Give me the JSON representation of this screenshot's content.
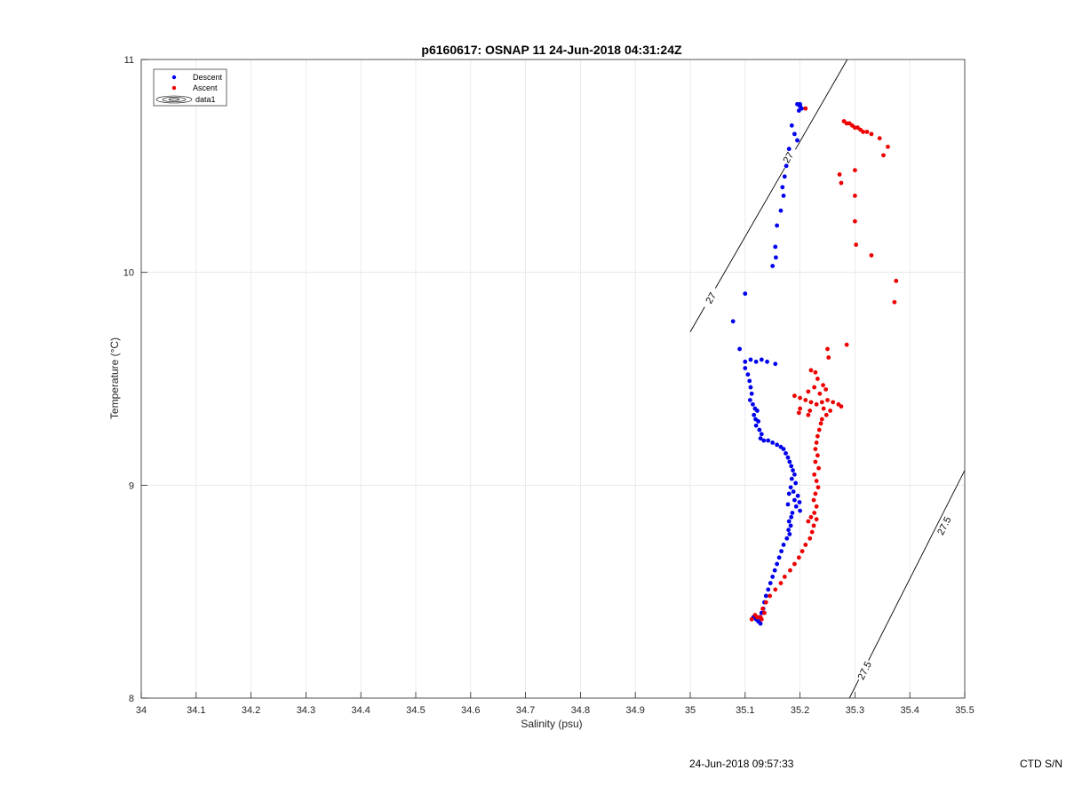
{
  "footer": {
    "date": "24-Jun-2018 09:57:33",
    "ctd": "CTD S/N"
  },
  "chart_data": {
    "type": "scatter",
    "title": "p6160617: OSNAP 11 24-Jun-2018 04:31:24Z",
    "xlabel": "Salinity (psu)",
    "ylabel": "Temperature (°C)",
    "xlim": [
      34,
      35.5
    ],
    "ylim": [
      8,
      11
    ],
    "xticks": [
      "34",
      "34.1",
      "34.2",
      "34.3",
      "34.4",
      "34.5",
      "34.6",
      "34.7",
      "34.8",
      "34.9",
      "35",
      "35.1",
      "35.2",
      "35.3",
      "35.4",
      "35.5"
    ],
    "yticks": [
      "8",
      "9",
      "10",
      "11"
    ],
    "grid": true,
    "legend_position": "top-left",
    "legend": [
      {
        "label": "Descent",
        "marker": "dot",
        "color": "#0000ee"
      },
      {
        "label": "Ascent",
        "marker": "dot",
        "color": "#ee0000"
      },
      {
        "label": "data1",
        "marker": "contour",
        "color": "#000000"
      }
    ],
    "isopycnals": [
      {
        "label": "27",
        "points": [
          [
            35.0,
            9.72
          ],
          [
            35.286,
            11.0
          ]
        ],
        "labels_at": [
          [
            35.037,
            9.88
          ],
          [
            35.178,
            10.54
          ]
        ]
      },
      {
        "label": "27.5",
        "points": [
          [
            35.29,
            8.0
          ],
          [
            35.5,
            9.07
          ]
        ],
        "labels_at": [
          [
            35.317,
            8.13
          ],
          [
            35.462,
            8.81
          ]
        ]
      }
    ],
    "series": [
      {
        "name": "Descent",
        "color": "#0000ee",
        "points": [
          [
            35.195,
            10.79
          ],
          [
            35.2,
            10.79
          ],
          [
            35.203,
            10.77
          ],
          [
            35.198,
            10.76
          ],
          [
            35.2,
            10.78
          ],
          [
            35.185,
            10.69
          ],
          [
            35.19,
            10.65
          ],
          [
            35.195,
            10.62
          ],
          [
            35.18,
            10.58
          ],
          [
            35.175,
            10.5
          ],
          [
            35.172,
            10.45
          ],
          [
            35.168,
            10.4
          ],
          [
            35.17,
            10.36
          ],
          [
            35.165,
            10.29
          ],
          [
            35.158,
            10.22
          ],
          [
            35.155,
            10.12
          ],
          [
            35.156,
            10.07
          ],
          [
            35.15,
            10.03
          ],
          [
            35.1,
            9.9
          ],
          [
            35.078,
            9.77
          ],
          [
            35.09,
            9.64
          ],
          [
            35.1,
            9.58
          ],
          [
            35.11,
            9.59
          ],
          [
            35.12,
            9.58
          ],
          [
            35.13,
            9.59
          ],
          [
            35.14,
            9.58
          ],
          [
            35.155,
            9.57
          ],
          [
            35.1,
            9.55
          ],
          [
            35.105,
            9.52
          ],
          [
            35.108,
            9.49
          ],
          [
            35.11,
            9.46
          ],
          [
            35.112,
            9.43
          ],
          [
            35.109,
            9.4
          ],
          [
            35.114,
            9.38
          ],
          [
            35.118,
            9.36
          ],
          [
            35.122,
            9.35
          ],
          [
            35.116,
            9.33
          ],
          [
            35.119,
            9.31
          ],
          [
            35.124,
            9.3
          ],
          [
            35.12,
            9.28
          ],
          [
            35.126,
            9.26
          ],
          [
            35.13,
            9.24
          ],
          [
            35.128,
            9.22
          ],
          [
            35.134,
            9.21
          ],
          [
            35.142,
            9.21
          ],
          [
            35.15,
            9.2
          ],
          [
            35.158,
            9.19
          ],
          [
            35.165,
            9.18
          ],
          [
            35.17,
            9.17
          ],
          [
            35.174,
            9.15
          ],
          [
            35.178,
            9.13
          ],
          [
            35.181,
            9.11
          ],
          [
            35.184,
            9.09
          ],
          [
            35.187,
            9.07
          ],
          [
            35.19,
            9.05
          ],
          [
            35.185,
            9.03
          ],
          [
            35.192,
            9.01
          ],
          [
            35.183,
            8.99
          ],
          [
            35.188,
            8.97
          ],
          [
            35.18,
            8.96
          ],
          [
            35.196,
            8.95
          ],
          [
            35.19,
            8.93
          ],
          [
            35.199,
            8.92
          ],
          [
            35.178,
            8.91
          ],
          [
            35.193,
            8.9
          ],
          [
            35.2,
            8.88
          ],
          [
            35.186,
            8.87
          ],
          [
            35.184,
            8.85
          ],
          [
            35.18,
            8.83
          ],
          [
            35.183,
            8.81
          ],
          [
            35.179,
            8.79
          ],
          [
            35.181,
            8.77
          ],
          [
            35.176,
            8.75
          ],
          [
            35.17,
            8.72
          ],
          [
            35.166,
            8.69
          ],
          [
            35.162,
            8.66
          ],
          [
            35.158,
            8.63
          ],
          [
            35.154,
            8.6
          ],
          [
            35.15,
            8.57
          ],
          [
            35.146,
            8.54
          ],
          [
            35.142,
            8.51
          ],
          [
            35.138,
            8.48
          ],
          [
            35.135,
            8.45
          ],
          [
            35.133,
            8.42
          ],
          [
            35.13,
            8.4
          ],
          [
            35.126,
            8.38
          ],
          [
            35.124,
            8.36
          ],
          [
            35.12,
            8.37
          ],
          [
            35.128,
            8.35
          ],
          [
            35.115,
            8.38
          ]
        ]
      },
      {
        "name": "Ascent",
        "color": "#ee0000",
        "points": [
          [
            35.21,
            10.77
          ],
          [
            35.28,
            10.71
          ],
          [
            35.285,
            10.7
          ],
          [
            35.29,
            10.7
          ],
          [
            35.295,
            10.69
          ],
          [
            35.3,
            10.68
          ],
          [
            35.305,
            10.68
          ],
          [
            35.31,
            10.67
          ],
          [
            35.315,
            10.66
          ],
          [
            35.322,
            10.66
          ],
          [
            35.33,
            10.65
          ],
          [
            35.345,
            10.63
          ],
          [
            35.36,
            10.59
          ],
          [
            35.352,
            10.55
          ],
          [
            35.3,
            10.48
          ],
          [
            35.272,
            10.46
          ],
          [
            35.275,
            10.42
          ],
          [
            35.3,
            10.36
          ],
          [
            35.3,
            10.24
          ],
          [
            35.302,
            10.13
          ],
          [
            35.33,
            10.08
          ],
          [
            35.375,
            9.96
          ],
          [
            35.372,
            9.86
          ],
          [
            35.285,
            9.66
          ],
          [
            35.25,
            9.64
          ],
          [
            35.252,
            9.6
          ],
          [
            35.22,
            9.54
          ],
          [
            35.228,
            9.53
          ],
          [
            35.232,
            9.5
          ],
          [
            35.242,
            9.47
          ],
          [
            35.226,
            9.46
          ],
          [
            35.247,
            9.45
          ],
          [
            35.215,
            9.44
          ],
          [
            35.236,
            9.43
          ],
          [
            35.19,
            9.42
          ],
          [
            35.2,
            9.41
          ],
          [
            35.21,
            9.4
          ],
          [
            35.22,
            9.39
          ],
          [
            35.23,
            9.38
          ],
          [
            35.24,
            9.39
          ],
          [
            35.25,
            9.4
          ],
          [
            35.26,
            9.39
          ],
          [
            35.27,
            9.38
          ],
          [
            35.275,
            9.37
          ],
          [
            35.2,
            9.36
          ],
          [
            35.218,
            9.35
          ],
          [
            35.243,
            9.36
          ],
          [
            35.255,
            9.35
          ],
          [
            35.198,
            9.34
          ],
          [
            35.215,
            9.33
          ],
          [
            35.248,
            9.33
          ],
          [
            35.24,
            9.31
          ],
          [
            35.238,
            9.29
          ],
          [
            35.235,
            9.26
          ],
          [
            35.232,
            9.23
          ],
          [
            35.23,
            9.2
          ],
          [
            35.228,
            9.17
          ],
          [
            35.232,
            9.14
          ],
          [
            35.228,
            9.11
          ],
          [
            35.234,
            9.08
          ],
          [
            35.226,
            9.05
          ],
          [
            35.23,
            9.02
          ],
          [
            35.233,
            8.99
          ],
          [
            35.228,
            8.96
          ],
          [
            35.225,
            8.93
          ],
          [
            35.23,
            8.9
          ],
          [
            35.226,
            8.87
          ],
          [
            35.22,
            8.85
          ],
          [
            35.23,
            8.84
          ],
          [
            35.215,
            8.83
          ],
          [
            35.225,
            8.81
          ],
          [
            35.222,
            8.78
          ],
          [
            35.218,
            8.75
          ],
          [
            35.21,
            8.72
          ],
          [
            35.204,
            8.69
          ],
          [
            35.198,
            8.66
          ],
          [
            35.19,
            8.63
          ],
          [
            35.182,
            8.6
          ],
          [
            35.172,
            8.57
          ],
          [
            35.165,
            8.54
          ],
          [
            35.155,
            8.51
          ],
          [
            35.145,
            8.48
          ],
          [
            35.138,
            8.45
          ],
          [
            35.132,
            8.42
          ],
          [
            35.135,
            8.4
          ],
          [
            35.128,
            8.38
          ],
          [
            35.118,
            8.39
          ],
          [
            35.112,
            8.37
          ],
          [
            35.122,
            8.38
          ],
          [
            35.13,
            8.37
          ]
        ]
      }
    ]
  }
}
